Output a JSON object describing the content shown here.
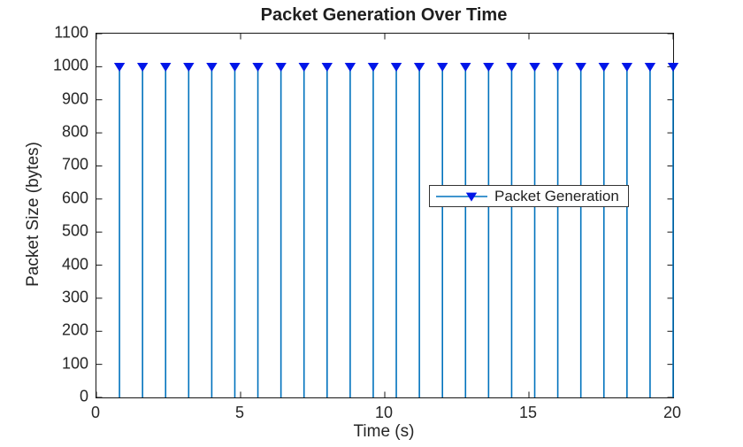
{
  "chart_data": {
    "type": "stem",
    "title": "Packet Generation Over Time",
    "xlabel": "Time (s)",
    "ylabel": "Packet Size (bytes)",
    "xlim": [
      0,
      20
    ],
    "ylim": [
      0,
      1100
    ],
    "x_ticks": [
      0,
      5,
      10,
      15,
      20
    ],
    "y_ticks": [
      0,
      100,
      200,
      300,
      400,
      500,
      600,
      700,
      800,
      900,
      1000,
      1100
    ],
    "grid": false,
    "legend": {
      "label": "Packet Generation",
      "position": "right-center-inside"
    },
    "series": [
      {
        "name": "Packet Generation",
        "x": [
          0.8,
          1.6,
          2.4,
          3.2,
          4.0,
          4.8,
          5.6,
          6.4,
          7.2,
          8.0,
          8.8,
          9.6,
          10.4,
          11.2,
          12.0,
          12.8,
          13.6,
          14.4,
          15.2,
          16.0,
          16.8,
          17.6,
          18.4,
          19.2,
          20.0
        ],
        "y": [
          1000,
          1000,
          1000,
          1000,
          1000,
          1000,
          1000,
          1000,
          1000,
          1000,
          1000,
          1000,
          1000,
          1000,
          1000,
          1000,
          1000,
          1000,
          1000,
          1000,
          1000,
          1000,
          1000,
          1000,
          1000
        ],
        "marker": "filled-triangle-down",
        "line_color": "#0072BD",
        "marker_color": "#0016E8"
      }
    ],
    "colors": {
      "background": "#ffffff",
      "axis": "#151515",
      "tick_label": "#262626",
      "title": "#1f1f1f",
      "legend_border": "#333333"
    }
  }
}
